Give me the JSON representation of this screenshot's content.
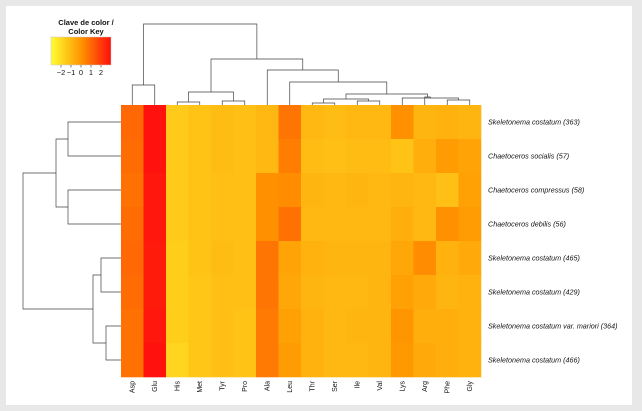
{
  "chart_data": {
    "type": "heatmap",
    "legend": {
      "title_line1": "Clave de color /",
      "title_line2": "Color Key",
      "ticks": [
        "−2",
        "−1",
        "0",
        "1",
        "2"
      ],
      "range": [
        -3,
        3
      ]
    },
    "colors": {
      "low": "#ffff33",
      "mid": "#ff9500",
      "high": "#ff0d0d"
    },
    "columns": [
      "Asp",
      "Glu",
      "His",
      "Met",
      "Tyr",
      "Pro",
      "Ala",
      "Leu",
      "Thr",
      "Ser",
      "Ile",
      "Val",
      "Lys",
      "Arg",
      "Phe",
      "Gly"
    ],
    "rows": [
      "Skeletonema costatum (363)",
      "Chaetoceros socialis (57)",
      "Chaetoceros compressus (58)",
      "Chaetoceros debilis (56)",
      "Skeletonema costatum (465)",
      "Skeletonema costatum (429)",
      "Skeletonema costatum var. mariori (364)",
      "Skeletonema costatum (466)"
    ],
    "values": [
      [
        1.0,
        2.9,
        -1.5,
        -1.3,
        -1.1,
        -1.2,
        -1.0,
        0.7,
        -1.0,
        -1.1,
        -1.0,
        -1.0,
        0.1,
        -0.9,
        -0.8,
        -0.9
      ],
      [
        0.9,
        2.9,
        -1.5,
        -1.3,
        -1.1,
        -1.2,
        -1.0,
        0.5,
        -1.1,
        -1.2,
        -1.1,
        -1.1,
        -1.3,
        -0.7,
        -0.2,
        -0.4
      ],
      [
        0.8,
        2.8,
        -1.5,
        -1.3,
        -1.2,
        -1.2,
        0.1,
        0.2,
        -0.9,
        -1.0,
        -0.9,
        -1.0,
        -0.9,
        -1.0,
        -1.2,
        -0.3
      ],
      [
        0.9,
        2.8,
        -1.5,
        -1.3,
        -1.2,
        -1.2,
        0.1,
        0.8,
        -1.0,
        -1.0,
        -1.0,
        -1.0,
        -0.7,
        -1.0,
        0.1,
        -0.2
      ],
      [
        1.0,
        2.7,
        -1.6,
        -1.3,
        -1.1,
        -1.2,
        0.7,
        -0.4,
        -0.8,
        -0.9,
        -0.9,
        -0.9,
        -0.5,
        0.2,
        -0.8,
        -0.6
      ],
      [
        0.9,
        2.7,
        -1.6,
        -1.4,
        -1.2,
        -1.2,
        0.7,
        -0.5,
        -0.9,
        -1.0,
        -1.0,
        -0.9,
        -0.3,
        -0.6,
        -0.9,
        -0.8
      ],
      [
        0.8,
        2.8,
        -1.6,
        -1.4,
        -1.2,
        -1.3,
        0.6,
        -0.3,
        -0.8,
        -1.0,
        -0.9,
        -0.9,
        0.0,
        -0.7,
        -0.7,
        -0.8
      ],
      [
        0.8,
        2.9,
        -1.8,
        -1.4,
        -1.2,
        -1.3,
        0.6,
        -0.2,
        -0.8,
        -1.0,
        -1.0,
        -0.9,
        -0.1,
        -0.6,
        -0.7,
        -0.8
      ]
    ]
  }
}
